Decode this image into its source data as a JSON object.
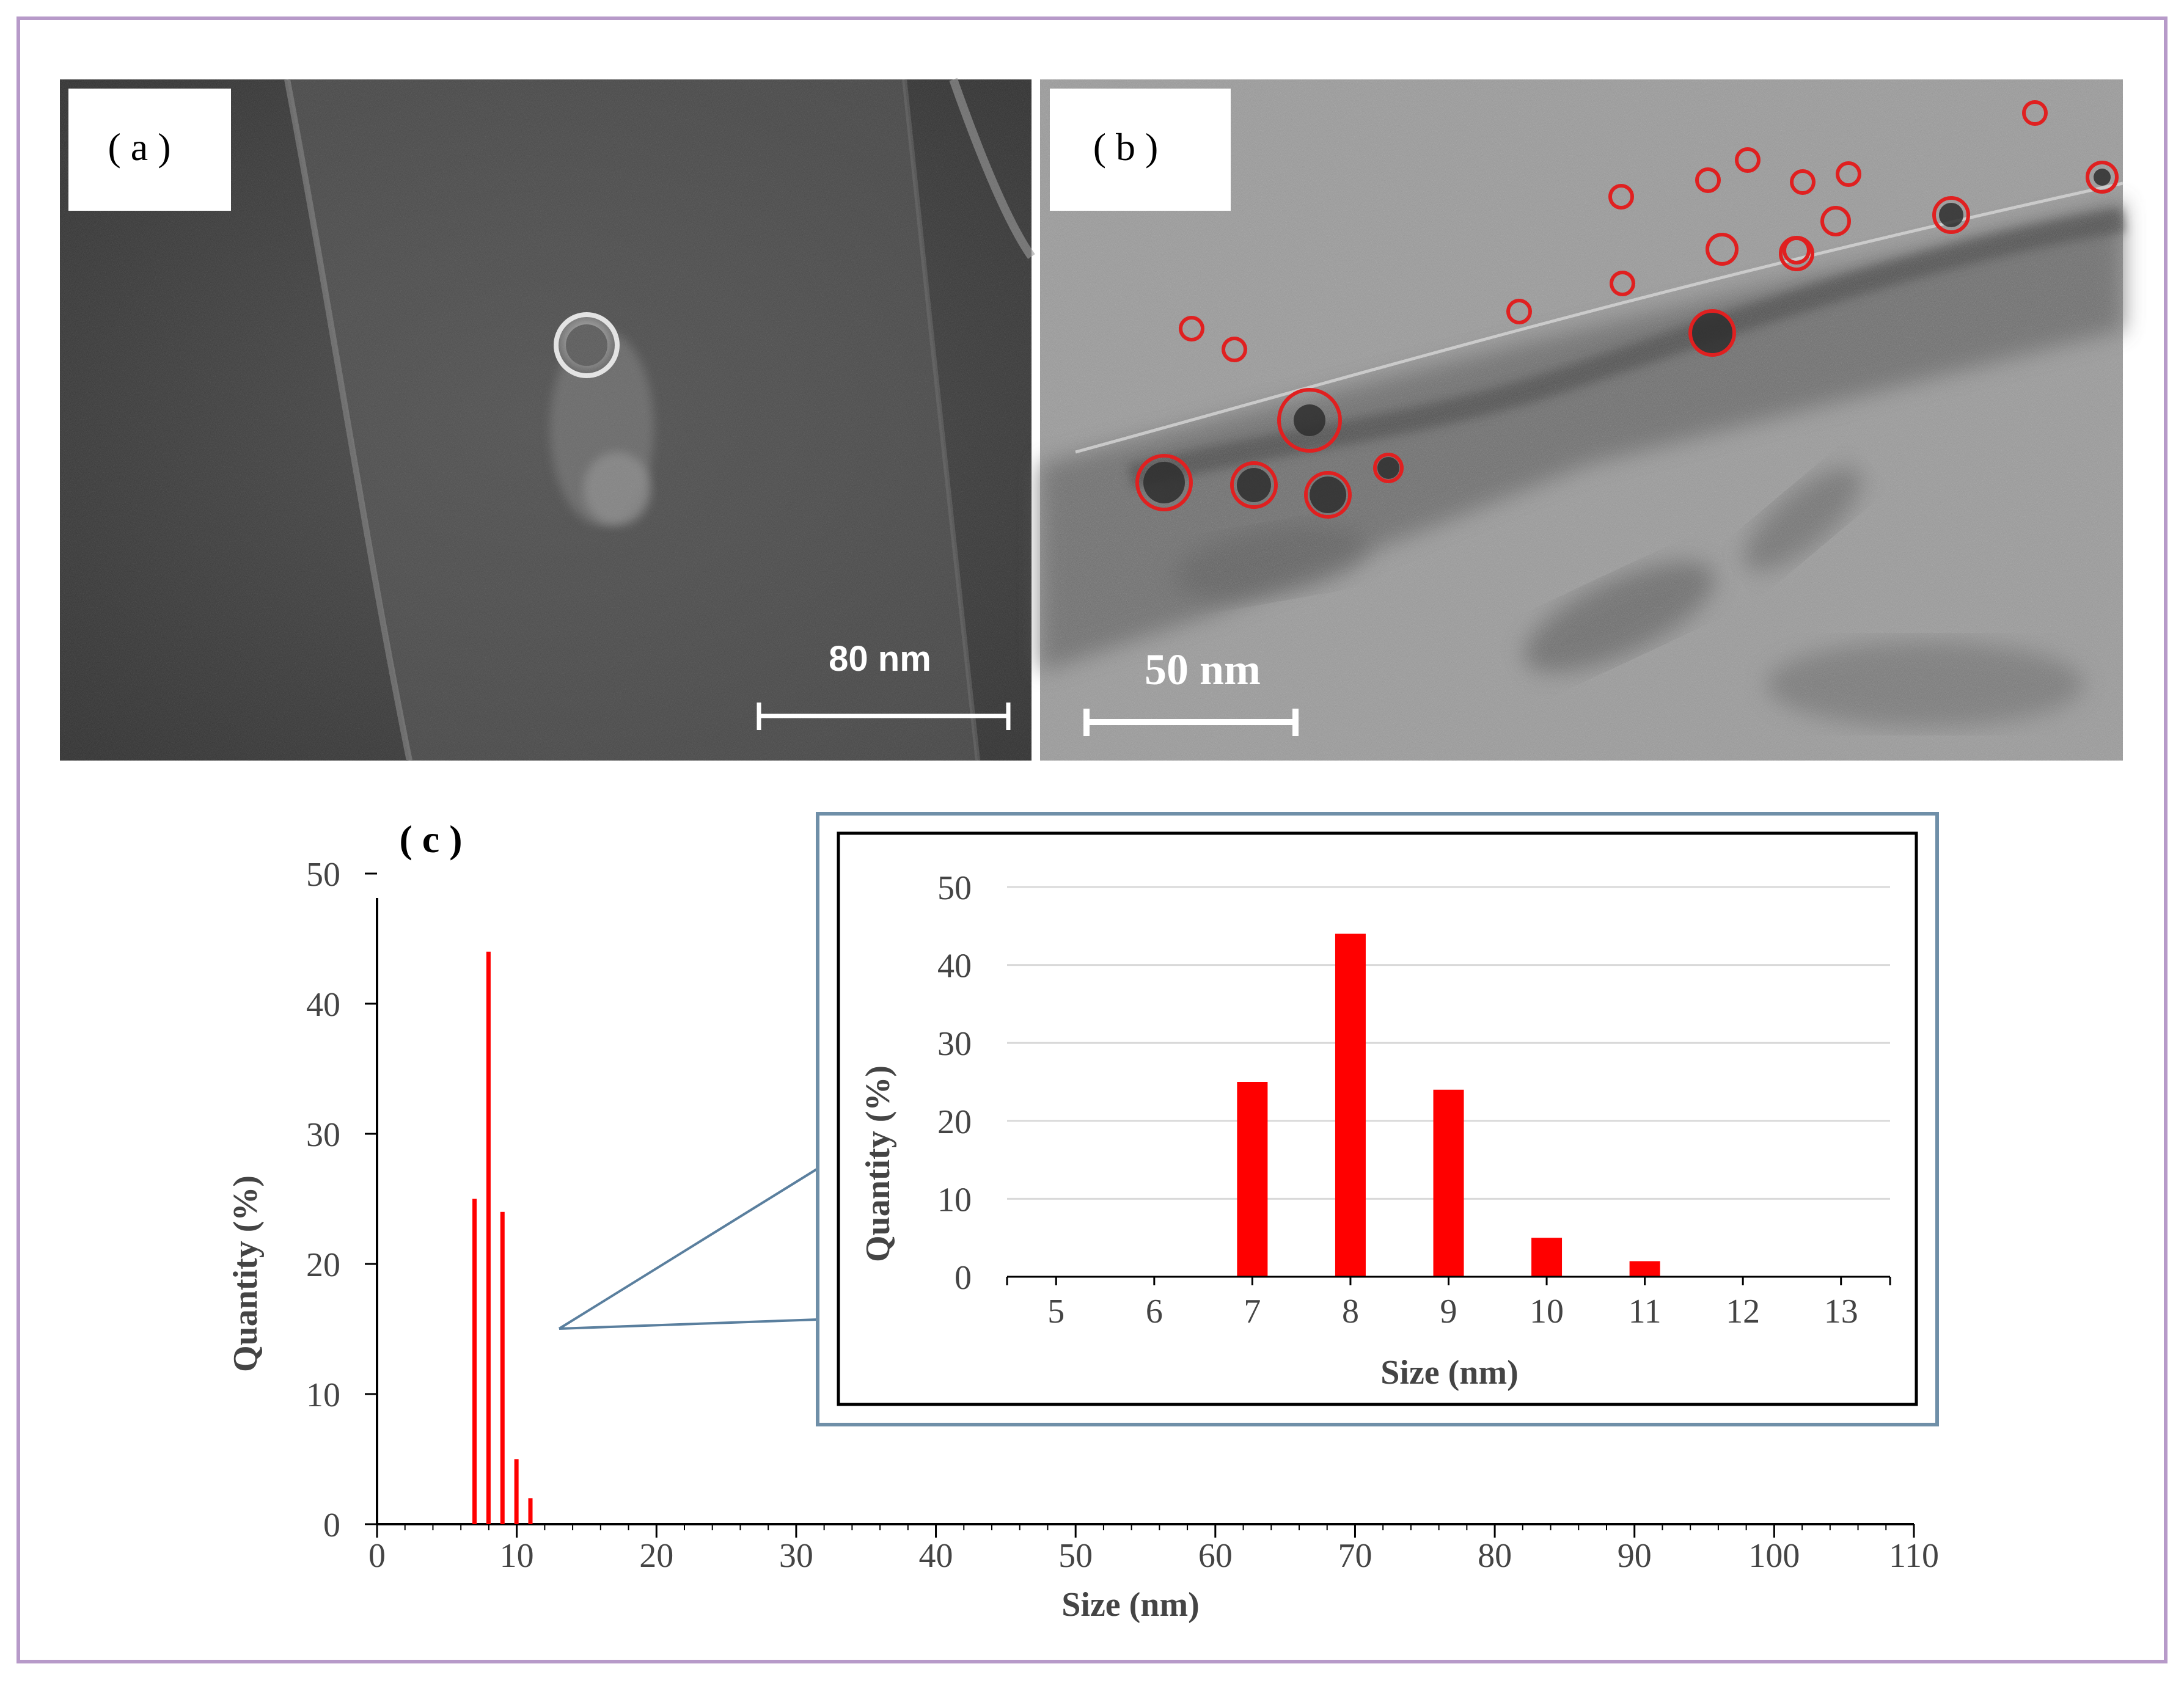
{
  "panels": {
    "a": {
      "label": "( a )",
      "scale_bar": "80 nm"
    },
    "b": {
      "label": "( b )",
      "scale_bar": "50 nm"
    },
    "c": {
      "label": "( c )"
    }
  },
  "colors": {
    "frame": "#b79ac9",
    "bar": "#ff0000",
    "inset_border": "#6f8fa8",
    "sem_bg": "#3c3c3c",
    "tem_bg": "#8f8f8f"
  },
  "chart_data": [
    {
      "type": "bar",
      "panel": "c-main",
      "xlabel": "Size (nm)",
      "ylabel": "Quantity (%)",
      "xlim": [
        0,
        110
      ],
      "ylim": [
        0,
        50
      ],
      "xticks": [
        0,
        10,
        20,
        30,
        40,
        50,
        60,
        70,
        80,
        90,
        100,
        110
      ],
      "yticks": [
        0,
        10,
        20,
        30,
        40,
        50
      ],
      "x": [
        7,
        8,
        9,
        10,
        11
      ],
      "values": [
        25,
        44,
        24,
        5,
        2
      ],
      "grid": false
    },
    {
      "type": "bar",
      "panel": "c-inset",
      "xlabel": "Size (nm)",
      "ylabel": "Quantity (%)",
      "categories": [
        "5",
        "6",
        "7",
        "8",
        "9",
        "10",
        "11",
        "12",
        "13"
      ],
      "values": [
        0,
        0,
        25,
        44,
        24,
        5,
        2,
        0,
        0
      ],
      "ylim": [
        0,
        50
      ],
      "yticks": [
        0,
        10,
        20,
        30,
        40,
        50
      ],
      "grid": true
    }
  ]
}
